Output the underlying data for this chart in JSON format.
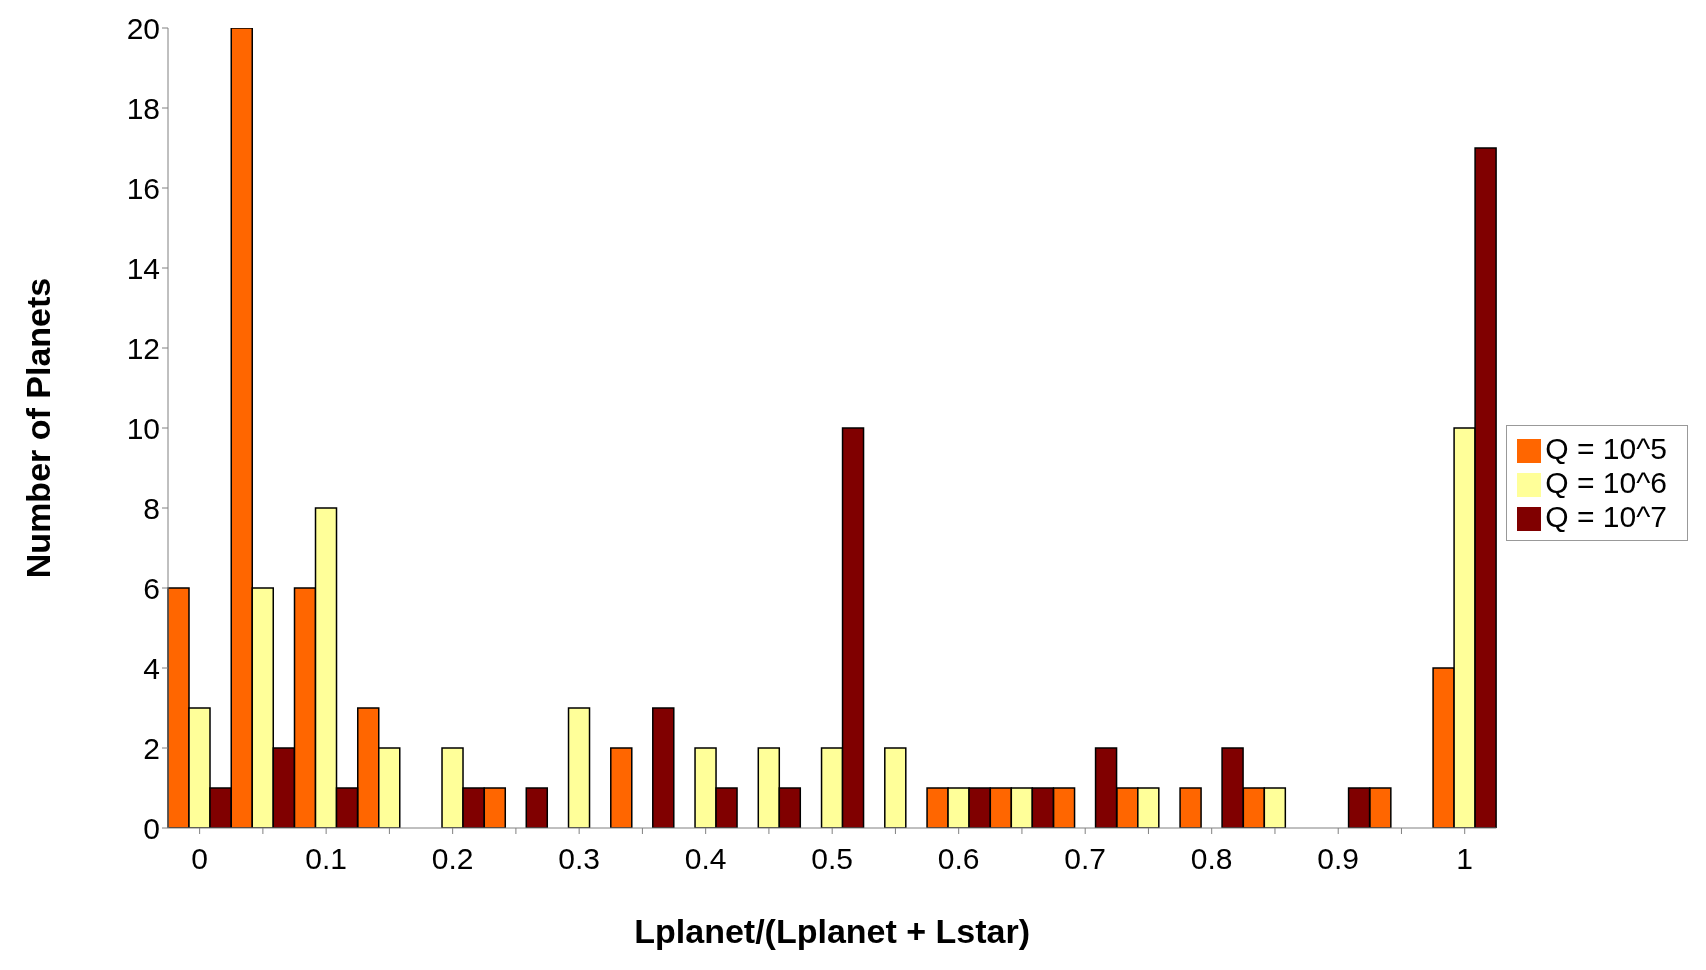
{
  "chart_data": {
    "type": "bar",
    "xlabel": "Lplanet/(Lplanet + Lstar)",
    "ylabel": "Number of Planets",
    "categories": [
      "0",
      null,
      "0.1",
      null,
      "0.2",
      null,
      "0.3",
      null,
      "0.4",
      null,
      "0.5",
      null,
      "0.6",
      null,
      "0.7",
      null,
      "0.8",
      null,
      "0.9",
      null,
      "1"
    ],
    "series": [
      {
        "name": "Q = 10^5",
        "color": "#ff6600",
        "values": [
          6,
          20,
          6,
          3,
          0,
          1,
          0,
          2,
          0,
          0,
          0,
          0,
          1,
          1,
          1,
          1,
          1,
          1,
          0,
          1,
          4
        ]
      },
      {
        "name": "Q = 10^6",
        "color": "#ffff99",
        "values": [
          3,
          6,
          8,
          2,
          2,
          0,
          3,
          0,
          2,
          2,
          2,
          2,
          1,
          1,
          0,
          1,
          0,
          1,
          0,
          0,
          10
        ]
      },
      {
        "name": "Q = 10^7",
        "color": "#800000",
        "values": [
          1,
          2,
          1,
          0,
          1,
          1,
          0,
          3,
          1,
          1,
          10,
          0,
          1,
          1,
          2,
          0,
          2,
          0,
          1,
          0,
          17
        ]
      }
    ],
    "ylim": [
      0,
      20
    ],
    "yticks": [
      0,
      2,
      4,
      6,
      8,
      10,
      12,
      14,
      16,
      18,
      20
    ],
    "grid": false,
    "legend": "right"
  }
}
